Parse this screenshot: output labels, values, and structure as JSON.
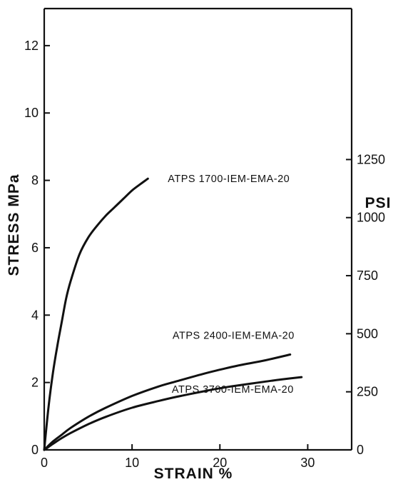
{
  "chart_data": {
    "type": "line",
    "xlabel": "STRAIN %",
    "ylabel": "STRESS MPa",
    "y2label": "PSI",
    "xlim": [
      0,
      35
    ],
    "ylim": [
      0,
      13
    ],
    "x_ticks": [
      0,
      10,
      20,
      30
    ],
    "y_ticks": [
      0,
      2,
      4,
      6,
      8,
      10,
      12
    ],
    "y2_ticks": [
      0,
      250,
      500,
      750,
      1000,
      1250
    ],
    "grid": false,
    "series": [
      {
        "name": "ATPS 1700-IEM-EMA-20",
        "x": [
          0,
          0.5,
          1,
          1.5,
          2,
          2.5,
          3,
          4,
          5,
          6,
          7,
          8,
          9,
          10,
          11,
          11.8
        ],
        "y": [
          0,
          1.3,
          2.3,
          3.1,
          3.8,
          4.5,
          5.0,
          5.8,
          6.3,
          6.65,
          6.95,
          7.2,
          7.45,
          7.7,
          7.9,
          8.05
        ]
      },
      {
        "name": "ATPS 2400-IEM-EMA-20",
        "x": [
          0,
          1,
          2,
          3,
          5,
          7,
          10,
          13,
          15,
          18,
          20,
          22,
          25,
          28
        ],
        "y": [
          0,
          0.25,
          0.45,
          0.65,
          0.98,
          1.25,
          1.6,
          1.88,
          2.03,
          2.25,
          2.38,
          2.5,
          2.65,
          2.83
        ]
      },
      {
        "name": "ATPS 3700-IEM-EMA-20",
        "x": [
          0,
          1,
          2,
          3,
          5,
          7,
          10,
          13,
          15,
          18,
          20,
          22,
          25,
          27,
          29.3
        ],
        "y": [
          0,
          0.18,
          0.35,
          0.5,
          0.76,
          0.98,
          1.25,
          1.45,
          1.57,
          1.73,
          1.83,
          1.91,
          2.02,
          2.09,
          2.16
        ]
      }
    ]
  }
}
